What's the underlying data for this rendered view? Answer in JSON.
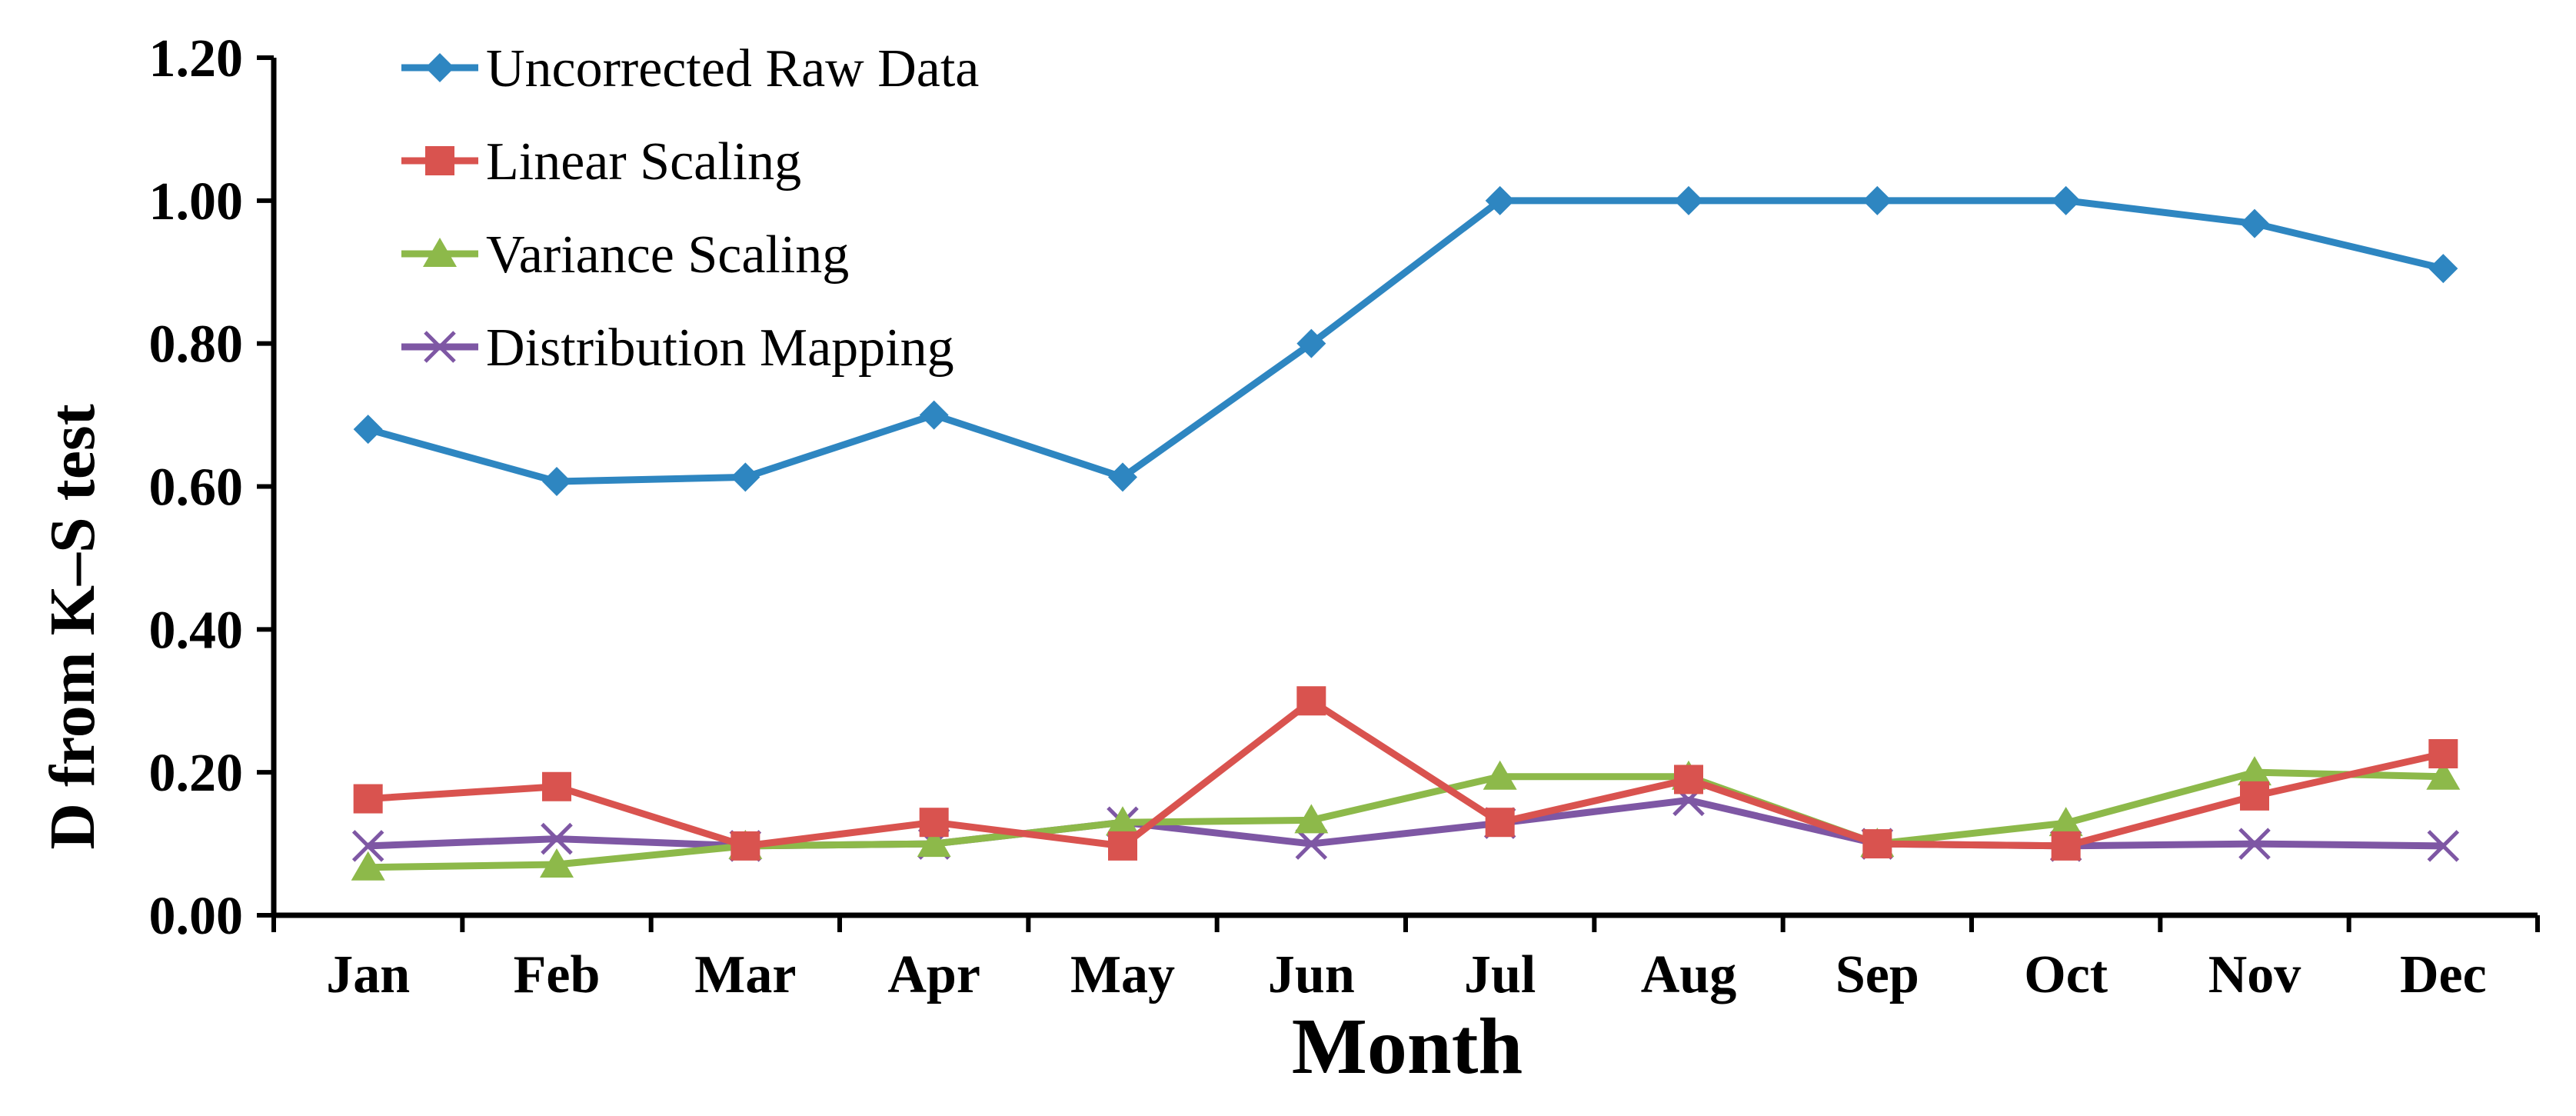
{
  "chart_data": {
    "type": "line",
    "title": "",
    "xlabel": "Month",
    "ylabel": "D from K–S test",
    "ylim": [
      0,
      1.2
    ],
    "yticks": [
      "0.00",
      "0.20",
      "0.40",
      "0.60",
      "0.80",
      "1.00",
      "1.20"
    ],
    "ytick_values": [
      0,
      0.2,
      0.4,
      0.6,
      0.8,
      1.0,
      1.2
    ],
    "categories": [
      "Jan",
      "Feb",
      "Mar",
      "Apr",
      "May",
      "Jun",
      "Jul",
      "Aug",
      "Sep",
      "Oct",
      "Nov",
      "Dec"
    ],
    "legend_position": "top-left",
    "grid": false,
    "series": [
      {
        "name": "Uncorrected Raw Data",
        "color": "#2E86C1",
        "marker": "diamond",
        "values": [
          0.68,
          0.607,
          0.613,
          0.7,
          0.613,
          0.8,
          1.0,
          1.0,
          1.0,
          1.0,
          0.968,
          0.905
        ]
      },
      {
        "name": "Linear Scaling",
        "color": "#D9534F",
        "marker": "square",
        "values": [
          0.163,
          0.18,
          0.097,
          0.13,
          0.097,
          0.3,
          0.13,
          0.19,
          0.1,
          0.097,
          0.167,
          0.226
        ]
      },
      {
        "name": "Variance Scaling",
        "color": "#8DB94A",
        "marker": "triangle",
        "values": [
          0.067,
          0.071,
          0.097,
          0.1,
          0.13,
          0.133,
          0.194,
          0.194,
          0.1,
          0.129,
          0.2,
          0.194
        ]
      },
      {
        "name": "Distribution Mapping",
        "color": "#7E57A4",
        "marker": "x",
        "values": [
          0.097,
          0.107,
          0.097,
          0.1,
          0.13,
          0.1,
          0.129,
          0.161,
          0.1,
          0.097,
          0.1,
          0.097
        ]
      }
    ]
  }
}
